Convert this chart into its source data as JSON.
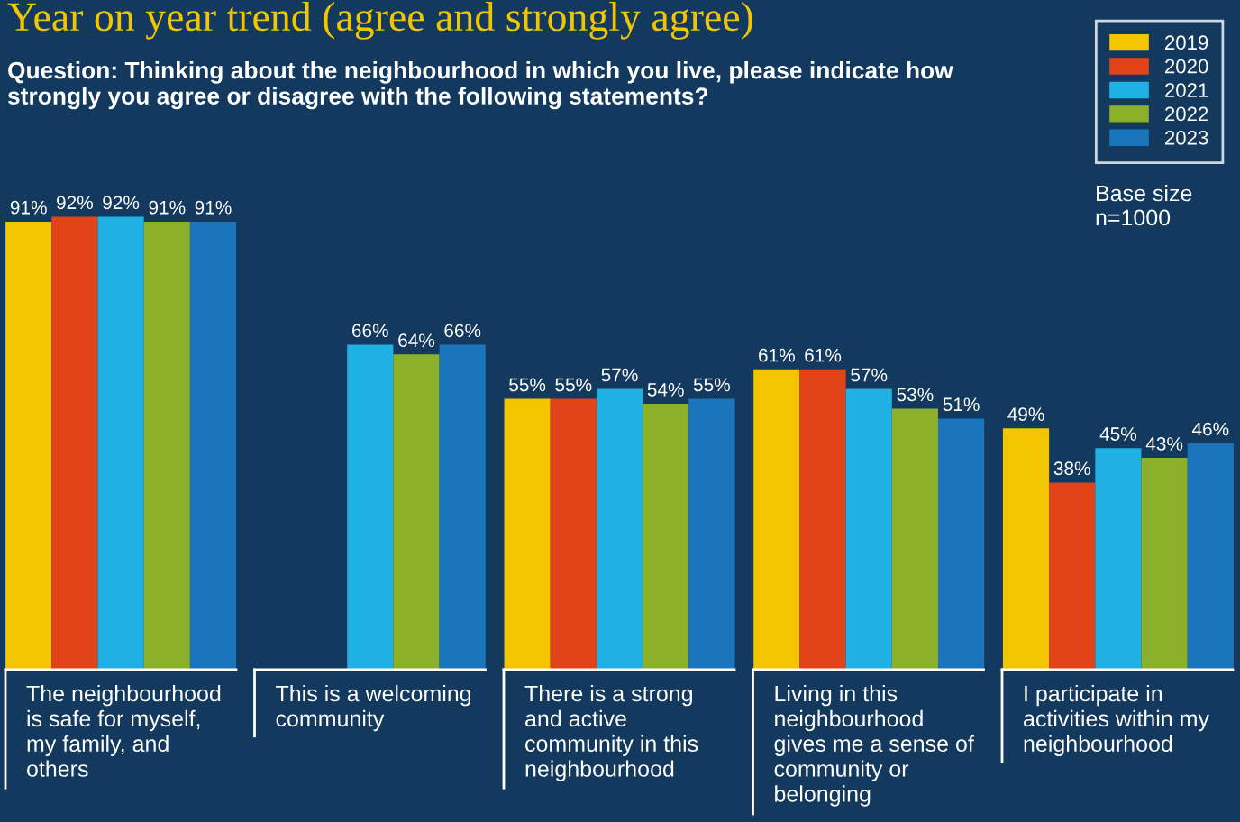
{
  "chart_data": {
    "type": "bar",
    "title": "Year on year trend (agree and strongly agree)",
    "subtitle": "Question: Thinking about the neighbourhood in which you live, please indicate how strongly you agree or disagree with the following statements?",
    "categories": [
      "The neighbourhood is safe for myself, my family, and others",
      "This is a welcoming community",
      "There is a strong and active community in this neighbourhood",
      "Living in this neighbourhood gives me a sense of community or belonging",
      "I participate in activities within my neighbourhood"
    ],
    "series": [
      {
        "name": "2019",
        "color": "#f2c500",
        "values": [
          91,
          null,
          55,
          61,
          49
        ],
        "value_labels": [
          "91%",
          null,
          "55%",
          "61%",
          "49%"
        ]
      },
      {
        "name": "2020",
        "color": "#e04418",
        "values": [
          92,
          null,
          55,
          61,
          38
        ],
        "value_labels": [
          "92%",
          null,
          "55%",
          "61%",
          "38%"
        ]
      },
      {
        "name": "2021",
        "color": "#1fb0e4",
        "values": [
          92,
          66,
          57,
          57,
          45
        ],
        "value_labels": [
          "92%",
          "66%",
          "57%",
          "57%",
          "45%"
        ]
      },
      {
        "name": "2022",
        "color": "#8bb02a",
        "values": [
          91,
          64,
          54,
          53,
          43
        ],
        "value_labels": [
          "91%",
          "64%",
          "54%",
          "53%",
          "43%"
        ]
      },
      {
        "name": "2023",
        "color": "#1b75bc",
        "values": [
          91,
          66,
          55,
          51,
          46
        ],
        "value_labels": [
          "91%",
          "66%",
          "55%",
          "51%",
          "46%"
        ]
      }
    ],
    "legend": "top right",
    "annotations": [
      "Base size n=1000"
    ]
  }
}
